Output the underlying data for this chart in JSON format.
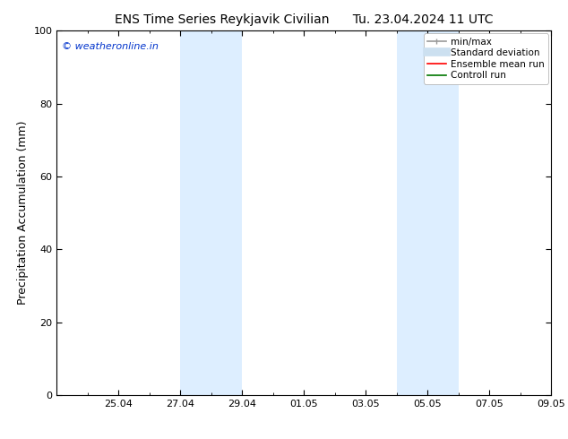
{
  "title_left": "ENS Time Series Reykjavik Civilian",
  "title_right": "Tu. 23.04.2024 11 UTC",
  "ylabel": "Precipitation Accumulation (mm)",
  "ylim": [
    0,
    100
  ],
  "yticks": [
    0,
    20,
    40,
    60,
    80,
    100
  ],
  "xlim": [
    0,
    16
  ],
  "xtick_labels": [
    "25.04",
    "27.04",
    "29.04",
    "01.05",
    "03.05",
    "05.05",
    "07.05",
    "09.05"
  ],
  "xtick_positions": [
    2,
    4,
    6,
    8,
    10,
    12,
    14,
    16
  ],
  "shaded_bands": [
    {
      "x_start": 4,
      "x_end": 6
    },
    {
      "x_start": 11,
      "x_end": 13
    }
  ],
  "shaded_color": "#ddeeff",
  "watermark_text": "© weatheronline.in",
  "watermark_color": "#0033cc",
  "bg_color": "#ffffff",
  "legend_items": [
    {
      "label": "min/max",
      "color": "#999999",
      "lw": 1.2,
      "ls": "-",
      "type": "line_with_caps"
    },
    {
      "label": "Standard deviation",
      "color": "#cce0f0",
      "lw": 7,
      "ls": "-",
      "type": "thick_line"
    },
    {
      "label": "Ensemble mean run",
      "color": "#ff0000",
      "lw": 1.2,
      "ls": "-",
      "type": "line"
    },
    {
      "label": "Controll run",
      "color": "#007700",
      "lw": 1.2,
      "ls": "-",
      "type": "line"
    }
  ],
  "title_fontsize": 10,
  "tick_fontsize": 8,
  "ylabel_fontsize": 9,
  "legend_fontsize": 7.5,
  "watermark_fontsize": 8
}
